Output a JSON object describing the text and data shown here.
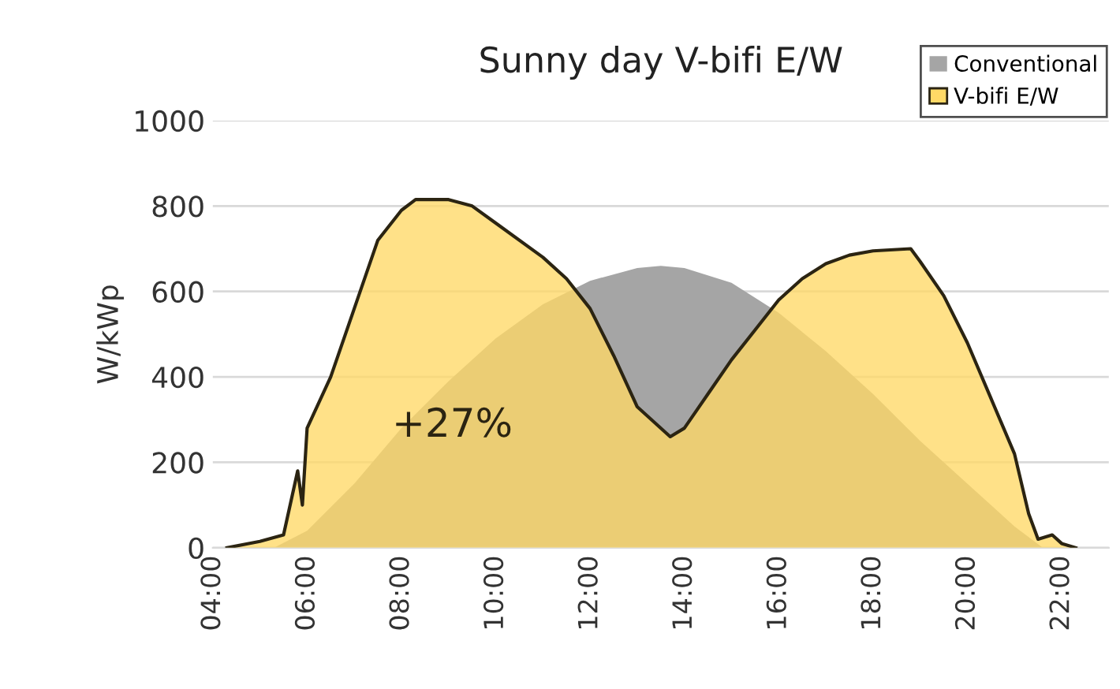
{
  "chart_data": {
    "type": "area",
    "title": "Sunny day V-bifi E/W",
    "ylabel": "W/kWp",
    "series": [
      {
        "name": "Conventional",
        "color": "#a5a5a5",
        "x": [
          5.3,
          6,
          7,
          8,
          9,
          10,
          11,
          12,
          13,
          13.5,
          14,
          15,
          16,
          17,
          18,
          19,
          20,
          21,
          21.6
        ],
        "values": [
          0,
          40,
          150,
          280,
          390,
          490,
          570,
          625,
          655,
          660,
          655,
          620,
          550,
          460,
          360,
          250,
          150,
          50,
          0
        ]
      },
      {
        "name": "V-bifi E/W",
        "color": "#ffd966",
        "x": [
          4.3,
          5,
          5.5,
          5.8,
          5.9,
          6.0,
          6.5,
          7,
          7.5,
          8,
          8.3,
          9,
          9.5,
          10,
          11,
          11.5,
          12,
          12.5,
          13,
          13.7,
          14,
          14.5,
          15,
          15.5,
          16,
          16.5,
          17,
          17.5,
          18,
          18.8,
          19,
          19.5,
          20,
          20.5,
          21,
          21.3,
          21.5,
          21.8,
          22,
          22.3
        ],
        "values": [
          0,
          15,
          30,
          180,
          100,
          280,
          400,
          560,
          720,
          790,
          815,
          815,
          800,
          760,
          680,
          630,
          560,
          450,
          330,
          260,
          280,
          360,
          440,
          510,
          580,
          630,
          665,
          685,
          695,
          700,
          670,
          590,
          480,
          350,
          220,
          80,
          20,
          30,
          10,
          0
        ]
      }
    ],
    "xlim": [
      4,
      23
    ],
    "xticks": [
      {
        "value": 4,
        "label": "04:00"
      },
      {
        "value": 6,
        "label": "06:00"
      },
      {
        "value": 8,
        "label": "08:00"
      },
      {
        "value": 10,
        "label": "10:00"
      },
      {
        "value": 12,
        "label": "12:00"
      },
      {
        "value": 14,
        "label": "14:00"
      },
      {
        "value": 16,
        "label": "16:00"
      },
      {
        "value": 18,
        "label": "18:00"
      },
      {
        "value": 20,
        "label": "20:00"
      },
      {
        "value": 22,
        "label": "22:00"
      }
    ],
    "ylim": [
      0,
      1000
    ],
    "yticks": [
      0,
      200,
      400,
      600,
      800,
      1000
    ],
    "annotations": [
      "+27%"
    ],
    "grid": "y",
    "legend": "top right"
  }
}
